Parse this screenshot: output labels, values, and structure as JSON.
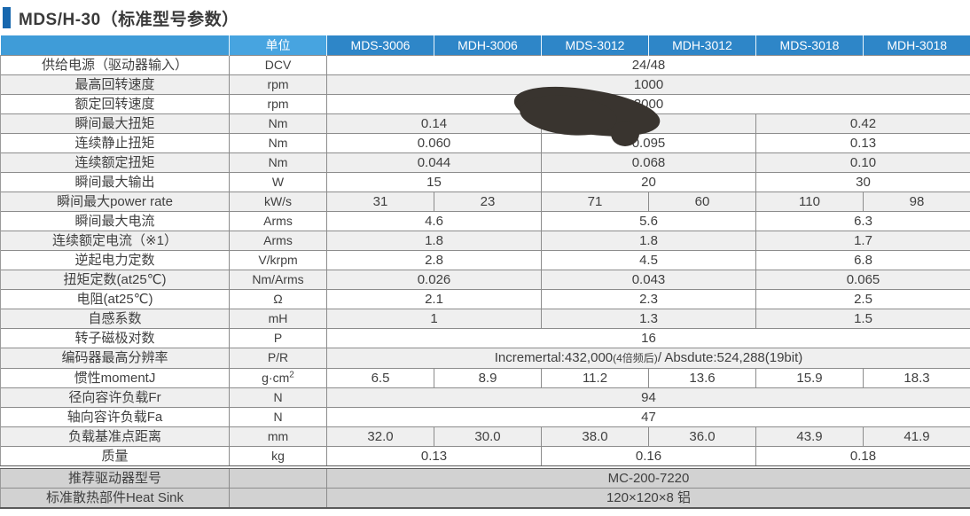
{
  "title": "MDS/H-30（标准型号参数）",
  "colors": {
    "accent_bar": "#1767ae",
    "header_left": "#3f9cd8",
    "header_unit": "#47a4e0",
    "header_model": "#2e86c8",
    "stripe_row": "#efefef",
    "footer_row": "#d2d2d2",
    "ink_smudge": "#39342f"
  },
  "ink_smudge": {
    "description": "dark ink blob covering the rated-speed value and the MDS/MDH-3012 peak-torque value",
    "color": "#39342f"
  },
  "table": {
    "unit_header": "单位",
    "model_headers": [
      "MDS-3006",
      "MDH-3006",
      "MDS-3012",
      "MDH-3012",
      "MDS-3018",
      "MDH-3018"
    ],
    "rows": [
      {
        "label": "供给电源（驱动器输入）",
        "unit": "DCV",
        "cells": [
          {
            "text": "24/48",
            "span": 6
          }
        ]
      },
      {
        "label": "最高回转速度",
        "unit": "rpm",
        "cells": [
          {
            "text": "1000",
            "span": 6
          }
        ]
      },
      {
        "label": "额定回转速度",
        "unit": "rpm",
        "cells": [
          {
            "text": "3000",
            "span": 6
          }
        ]
      },
      {
        "label": "瞬间最大扭矩",
        "unit": "Nm",
        "cells": [
          {
            "text": "0.14",
            "span": 2
          },
          {
            "text": "",
            "span": 2
          },
          {
            "text": "0.42",
            "span": 2
          }
        ]
      },
      {
        "label": "连续静止扭矩",
        "unit": "Nm",
        "cells": [
          {
            "text": "0.060",
            "span": 2
          },
          {
            "text": "0.095",
            "span": 2
          },
          {
            "text": "0.13",
            "span": 2
          }
        ]
      },
      {
        "label": "连续额定扭矩",
        "unit": "Nm",
        "cells": [
          {
            "text": "0.044",
            "span": 2
          },
          {
            "text": "0.068",
            "span": 2
          },
          {
            "text": "0.10",
            "span": 2
          }
        ]
      },
      {
        "label": "瞬间最大输出",
        "unit": "W",
        "cells": [
          {
            "text": "15",
            "span": 2
          },
          {
            "text": "20",
            "span": 2
          },
          {
            "text": "30",
            "span": 2
          }
        ]
      },
      {
        "label": "瞬间最大power rate",
        "unit": "kW/s",
        "cells": [
          {
            "text": "31",
            "span": 1
          },
          {
            "text": "23",
            "span": 1
          },
          {
            "text": "71",
            "span": 1
          },
          {
            "text": "60",
            "span": 1
          },
          {
            "text": "110",
            "span": 1
          },
          {
            "text": "98",
            "span": 1
          }
        ]
      },
      {
        "label": "瞬间最大电流",
        "unit": "Arms",
        "cells": [
          {
            "text": "4.6",
            "span": 2
          },
          {
            "text": "5.6",
            "span": 2
          },
          {
            "text": "6.3",
            "span": 2
          }
        ]
      },
      {
        "label": "连续额定电流（※1）",
        "unit": "Arms",
        "cells": [
          {
            "text": "1.8",
            "span": 2
          },
          {
            "text": "1.8",
            "span": 2
          },
          {
            "text": "1.7",
            "span": 2
          }
        ]
      },
      {
        "label": "逆起电力定数",
        "unit": "V/krpm",
        "cells": [
          {
            "text": "2.8",
            "span": 2
          },
          {
            "text": "4.5",
            "span": 2
          },
          {
            "text": "6.8",
            "span": 2
          }
        ]
      },
      {
        "label": "扭矩定数(at25℃)",
        "unit": "Nm/Arms",
        "cells": [
          {
            "text": "0.026",
            "span": 2
          },
          {
            "text": "0.043",
            "span": 2
          },
          {
            "text": "0.065",
            "span": 2
          }
        ]
      },
      {
        "label": "电阻(at25℃)",
        "unit": "Ω",
        "cells": [
          {
            "text": "2.1",
            "span": 2
          },
          {
            "text": "2.3",
            "span": 2
          },
          {
            "text": "2.5",
            "span": 2
          }
        ]
      },
      {
        "label": "自感系数",
        "unit": "mH",
        "cells": [
          {
            "text": "1",
            "span": 2
          },
          {
            "text": "1.3",
            "span": 2
          },
          {
            "text": "1.5",
            "span": 2
          }
        ]
      },
      {
        "label": "转子磁极对数",
        "unit": "P",
        "cells": [
          {
            "text": "16",
            "span": 6
          }
        ]
      },
      {
        "label": "编码器最高分辨率",
        "unit": "P/R",
        "cells": [
          {
            "pre": "Incremertal:432,000",
            "small": "(4倍频后)",
            "post": "/ Absdute:524,288(19bit)",
            "span": 6
          }
        ]
      },
      {
        "label": "惯性momentJ",
        "unit": "g·cm",
        "unit_sup": "2",
        "cells": [
          {
            "text": "6.5",
            "span": 1
          },
          {
            "text": "8.9",
            "span": 1
          },
          {
            "text": "11.2",
            "span": 1
          },
          {
            "text": "13.6",
            "span": 1
          },
          {
            "text": "15.9",
            "span": 1
          },
          {
            "text": "18.3",
            "span": 1
          }
        ]
      },
      {
        "label": "径向容许负载Fr",
        "unit": "N",
        "cells": [
          {
            "text": "94",
            "span": 6
          }
        ]
      },
      {
        "label": "轴向容许负载Fa",
        "unit": "N",
        "cells": [
          {
            "text": "47",
            "span": 6
          }
        ]
      },
      {
        "label": "负载基准点距离",
        "unit": "mm",
        "cells": [
          {
            "text": "32.0",
            "span": 1
          },
          {
            "text": "30.0",
            "span": 1
          },
          {
            "text": "38.0",
            "span": 1
          },
          {
            "text": "36.0",
            "span": 1
          },
          {
            "text": "43.9",
            "span": 1
          },
          {
            "text": "41.9",
            "span": 1
          }
        ]
      },
      {
        "label": "质量",
        "unit": "kg",
        "cells": [
          {
            "text": "0.13",
            "span": 2
          },
          {
            "text": "0.16",
            "span": 2
          },
          {
            "text": "0.18",
            "span": 2
          }
        ]
      },
      {
        "label": "推荐驱动器型号",
        "unit": "",
        "dark": true,
        "sep": true,
        "cells": [
          {
            "text": "MC-200-7220",
            "span": 6
          }
        ]
      },
      {
        "label": "标准散热部件Heat Sink",
        "unit": "",
        "dark": true,
        "cells": [
          {
            "text": "120×120×8 铝",
            "span": 6
          }
        ]
      }
    ]
  }
}
